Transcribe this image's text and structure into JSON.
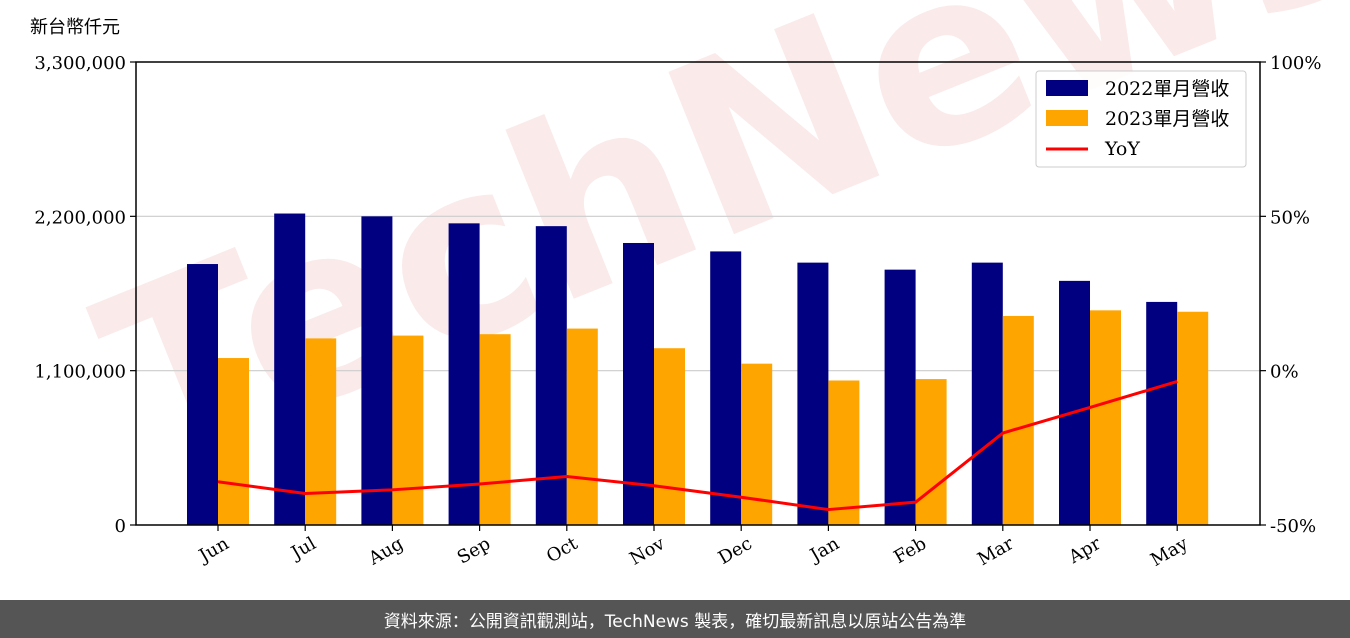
{
  "chart_data": {
    "type": "bar",
    "unit_label": "新台幣仟元",
    "categories": [
      "Jun",
      "Jul",
      "Aug",
      "Sep",
      "Oct",
      "Nov",
      "Dec",
      "Jan",
      "Feb",
      "Mar",
      "Apr",
      "May"
    ],
    "series": [
      {
        "name": "2022單月營收",
        "type": "bar",
        "color": "#000080",
        "axis": "left",
        "values": [
          1860000,
          2220000,
          2200000,
          2150000,
          2130000,
          2010000,
          1950000,
          1870000,
          1820000,
          1870000,
          1740000,
          1590000
        ]
      },
      {
        "name": "2023單月營收",
        "type": "bar",
        "color": "#FFA500",
        "axis": "left",
        "values": [
          1190000,
          1330000,
          1350000,
          1360000,
          1400000,
          1260000,
          1150000,
          1030000,
          1040000,
          1490000,
          1530000,
          1520000
        ]
      },
      {
        "name": "YoY",
        "type": "line",
        "color": "#FF0000",
        "axis": "right",
        "values": [
          -36.0,
          -39.8,
          -38.6,
          -36.7,
          -34.3,
          -37.3,
          -41.0,
          -45.0,
          -42.6,
          -20.2,
          -11.9,
          -3.5
        ]
      }
    ],
    "ylim": [
      0,
      3300000
    ],
    "yticks": [
      "0",
      "1,100,000",
      "2,200,000",
      "3,300,000"
    ],
    "ylim_right": [
      -50,
      100
    ],
    "yticks_right": [
      "-50%",
      "0%",
      "50%",
      "100%"
    ],
    "grid": true,
    "legend_position": "top-right",
    "watermark": "TechNews"
  },
  "footer": {
    "text": "資料來源：公開資訊觀測站，TechNews 製表，確切最新訊息以原站公告為準"
  }
}
